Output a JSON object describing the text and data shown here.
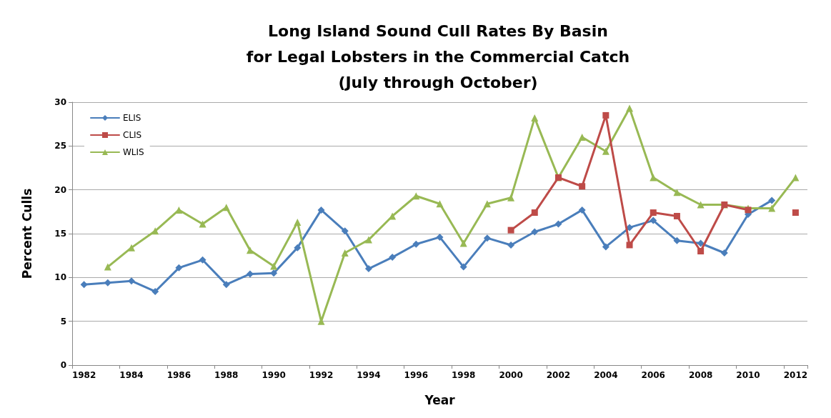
{
  "chart_data": {
    "type": "line",
    "title": "Long Island Sound Cull Rates By Basin\nfor Legal Lobsters in the Commercial Catch\n(July through October)",
    "xlabel": "Year",
    "ylabel": "Percent Culls",
    "categories": [
      "1982",
      null,
      "1984",
      null,
      "1986",
      null,
      "1988",
      null,
      "1990",
      null,
      "1992",
      null,
      "1994",
      null,
      "1996",
      null,
      "1998",
      null,
      "2000",
      null,
      "2002",
      null,
      "2004",
      null,
      "2006",
      null,
      "2008",
      null,
      "2010",
      null,
      "2012"
    ],
    "series": [
      {
        "name": "ELIS",
        "color": "#4a7ebb",
        "marker": "diamond",
        "values": [
          9.2,
          9.4,
          9.6,
          8.4,
          11.1,
          12.0,
          9.2,
          10.4,
          10.5,
          13.4,
          17.7,
          15.3,
          11.0,
          12.3,
          13.8,
          14.6,
          11.2,
          14.5,
          13.7,
          15.2,
          16.1,
          17.7,
          13.5,
          15.7,
          16.5,
          14.2,
          13.9,
          12.8,
          17.2,
          18.8,
          null
        ]
      },
      {
        "name": "CLIS",
        "color": "#be4b48",
        "marker": "square",
        "values": [
          null,
          null,
          null,
          null,
          null,
          null,
          null,
          null,
          null,
          null,
          null,
          null,
          null,
          null,
          null,
          null,
          null,
          null,
          15.4,
          17.4,
          21.4,
          20.4,
          28.5,
          13.7,
          17.4,
          17.0,
          13.0,
          18.3,
          17.7,
          null,
          17.4
        ]
      },
      {
        "name": "WLIS",
        "color": "#98b954",
        "marker": "triangle",
        "values": [
          null,
          11.2,
          13.4,
          15.3,
          17.7,
          16.1,
          18.0,
          13.1,
          11.3,
          16.3,
          5.0,
          12.8,
          14.3,
          17.0,
          19.3,
          18.4,
          13.9,
          18.4,
          19.1,
          28.2,
          21.4,
          26.0,
          24.4,
          29.3,
          21.4,
          19.7,
          18.3,
          18.3,
          17.9,
          17.9,
          21.4
        ]
      }
    ],
    "ylim": [
      0,
      30
    ],
    "yticks": [
      0,
      5,
      10,
      15,
      20,
      25,
      30
    ],
    "grid": "y",
    "legend": "top left",
    "line_style": "solid"
  }
}
